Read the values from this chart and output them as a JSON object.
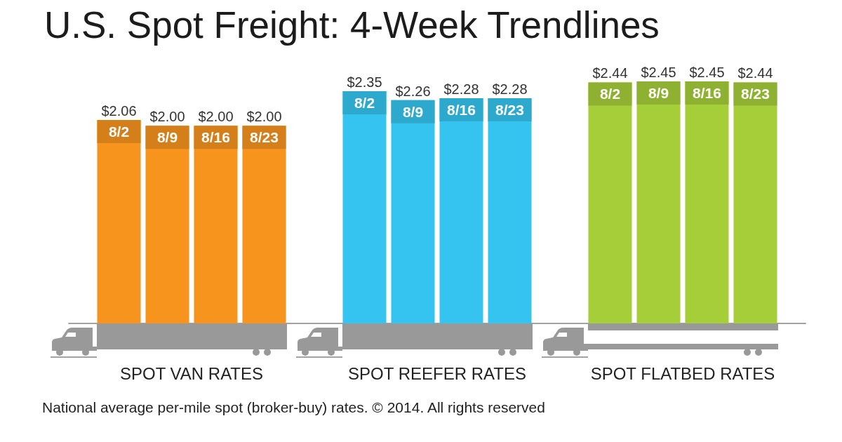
{
  "chart_data": {
    "type": "bar",
    "title": "U.S. Spot Freight: 4-Week Trendlines",
    "categories": [
      "SPOT VAN RATES",
      "SPOT REEFER RATES",
      "SPOT FLATBED RATES"
    ],
    "series": [
      {
        "name": "8/2",
        "colors": [
          "#f7941d",
          "#35c4f0",
          "#a6ce39"
        ],
        "values": [
          2.06,
          2.35,
          2.44
        ],
        "value_labels": [
          "$2.06",
          "$2.35",
          "$2.44"
        ]
      },
      {
        "name": "8/9",
        "colors": [
          "#f7941d",
          "#35c4f0",
          "#a6ce39"
        ],
        "values": [
          2.0,
          2.26,
          2.45
        ],
        "value_labels": [
          "$2.00",
          "$2.26",
          "$2.45"
        ]
      },
      {
        "name": "8/16",
        "colors": [
          "#f7941d",
          "#35c4f0",
          "#a6ce39"
        ],
        "values": [
          2.0,
          2.28,
          2.45
        ],
        "value_labels": [
          "$2.00",
          "$2.28",
          "$2.45"
        ]
      },
      {
        "name": "8/23",
        "colors": [
          "#f7941d",
          "#35c4f0",
          "#a6ce39"
        ],
        "values": [
          2.0,
          2.28,
          2.44
        ],
        "value_labels": [
          "$2.00",
          "$2.28",
          "$2.44"
        ]
      }
    ],
    "tick_labels": "x",
    "annotations": [
      "National average per-mile spot (broker-buy) rates. © 2014. All rights reserved"
    ]
  }
}
